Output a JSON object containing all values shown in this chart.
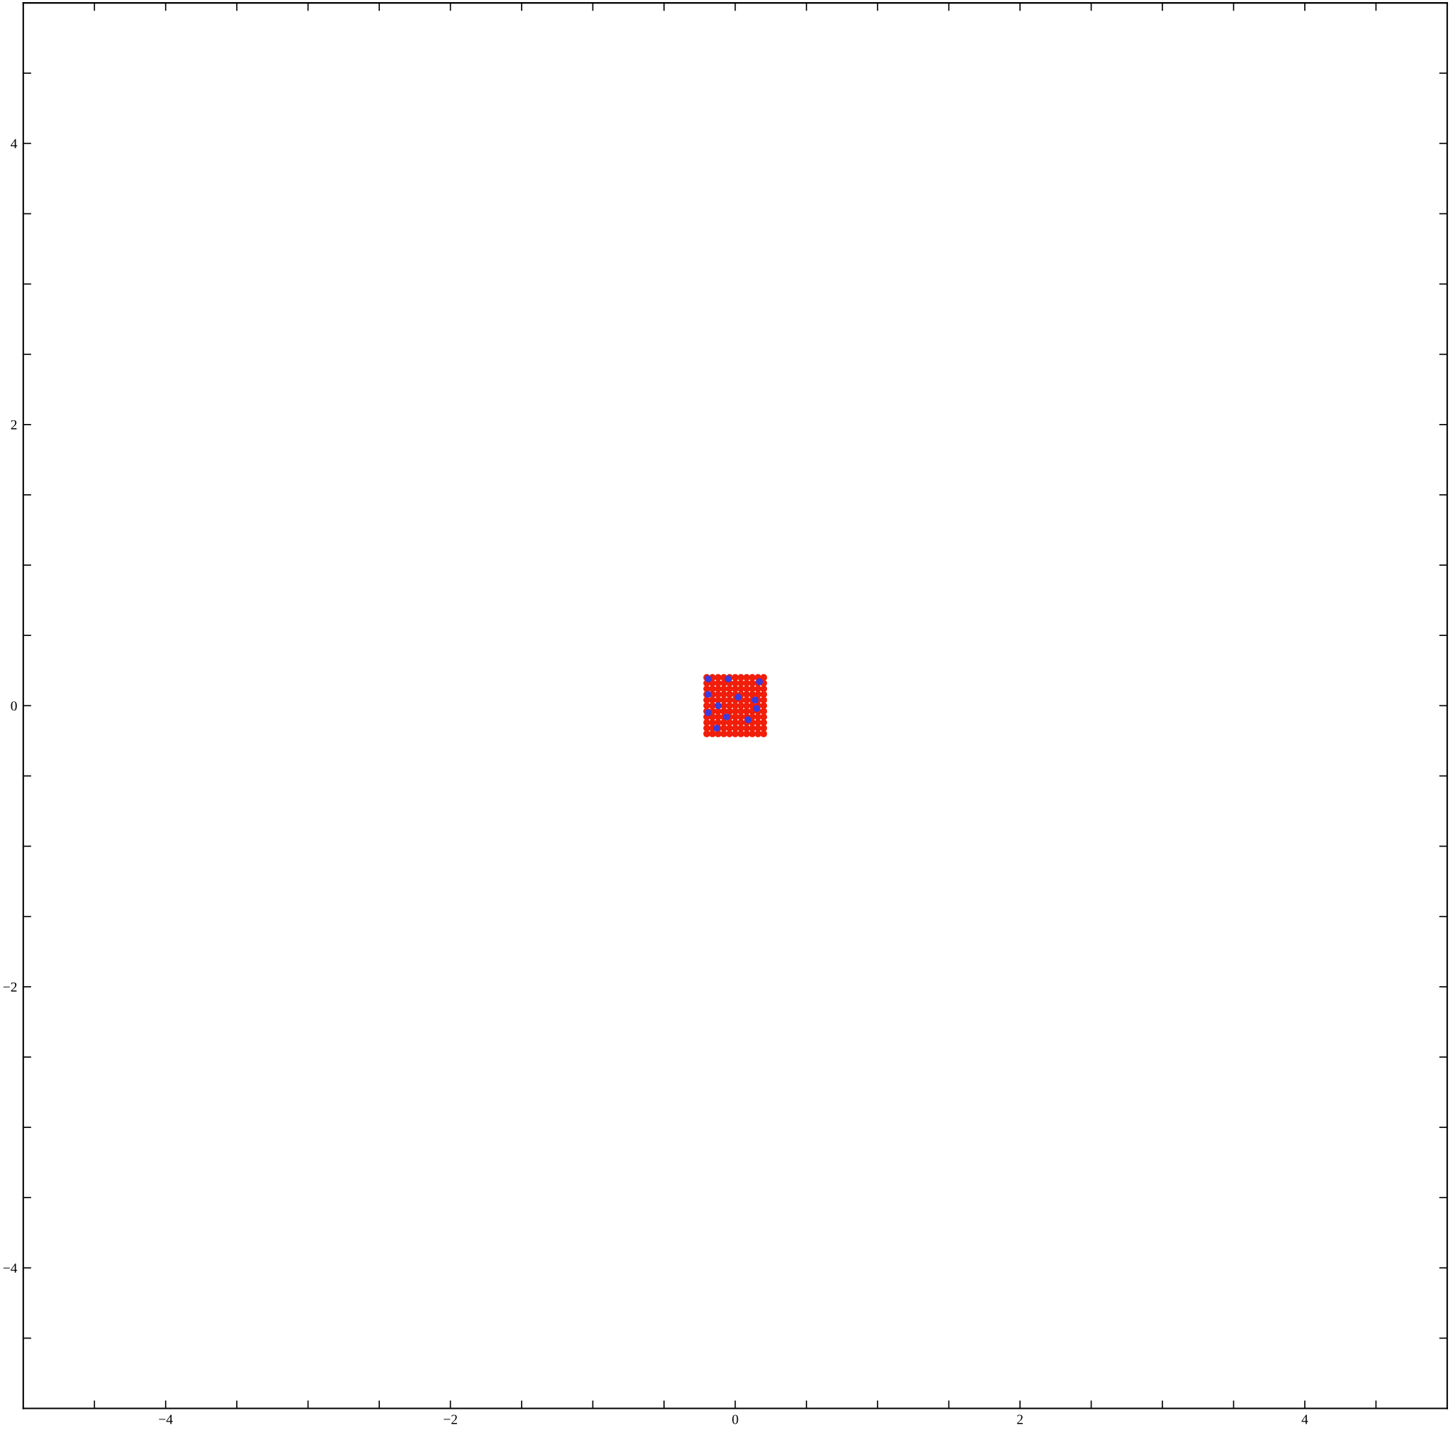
{
  "chart_data": {
    "type": "scatter",
    "marker": "circle",
    "grid": false,
    "legend": false,
    "xlim": [
      -5,
      5
    ],
    "ylim": [
      -5,
      5
    ],
    "xticks": [
      {
        "value": -4.5,
        "label": null
      },
      {
        "value": -4,
        "label": "−4"
      },
      {
        "value": -3.5,
        "label": null
      },
      {
        "value": -3,
        "label": null
      },
      {
        "value": -2.5,
        "label": null
      },
      {
        "value": -2,
        "label": "−2"
      },
      {
        "value": -1.5,
        "label": null
      },
      {
        "value": -1,
        "label": null
      },
      {
        "value": -0.5,
        "label": null
      },
      {
        "value": 0,
        "label": "0"
      },
      {
        "value": 0.5,
        "label": null
      },
      {
        "value": 1,
        "label": null
      },
      {
        "value": 1.5,
        "label": null
      },
      {
        "value": 2,
        "label": "2"
      },
      {
        "value": 2.5,
        "label": null
      },
      {
        "value": 3,
        "label": null
      },
      {
        "value": 3.5,
        "label": null
      },
      {
        "value": 4,
        "label": "4"
      },
      {
        "value": 4.5,
        "label": null
      }
    ],
    "yticks": [
      {
        "value": -4.5,
        "label": null
      },
      {
        "value": -4,
        "label": "−4"
      },
      {
        "value": -3.5,
        "label": null
      },
      {
        "value": -3,
        "label": null
      },
      {
        "value": -2.5,
        "label": null
      },
      {
        "value": -2,
        "label": "−2"
      },
      {
        "value": -1.5,
        "label": null
      },
      {
        "value": -1,
        "label": null
      },
      {
        "value": -0.5,
        "label": null
      },
      {
        "value": 0,
        "label": "0"
      },
      {
        "value": 0.5,
        "label": null
      },
      {
        "value": 1,
        "label": null
      },
      {
        "value": 1.5,
        "label": null
      },
      {
        "value": 2,
        "label": "2"
      },
      {
        "value": 2.5,
        "label": null
      },
      {
        "value": 3,
        "label": null
      },
      {
        "value": 3.5,
        "label": null
      },
      {
        "value": 4,
        "label": "4"
      },
      {
        "value": 4.5,
        "label": null
      }
    ],
    "series": [
      {
        "color": "#f01e0a",
        "x": [
          -0.2,
          -0.16,
          -0.12,
          -0.08,
          -0.04,
          0,
          0.04,
          0.08,
          0.12,
          0.16,
          0.2,
          -0.2,
          -0.16,
          -0.12,
          -0.08,
          -0.04,
          0,
          0.04,
          0.08,
          0.12,
          0.16,
          0.2,
          -0.2,
          -0.16,
          -0.12,
          -0.08,
          -0.04,
          0,
          0.04,
          0.08,
          0.12,
          0.16,
          0.2,
          -0.2,
          -0.16,
          -0.12,
          -0.08,
          -0.04,
          0,
          0.04,
          0.08,
          0.12,
          0.16,
          0.2,
          -0.2,
          -0.16,
          -0.12,
          -0.08,
          -0.04,
          0,
          0.04,
          0.08,
          0.12,
          0.16,
          0.2,
          -0.2,
          -0.16,
          -0.12,
          -0.08,
          -0.04,
          0,
          0.04,
          0.08,
          0.12,
          0.16,
          0.2,
          -0.2,
          -0.16,
          -0.12,
          -0.08,
          -0.04,
          0,
          0.04,
          0.08,
          0.12,
          0.16,
          0.2,
          -0.2,
          -0.16,
          -0.12,
          -0.08,
          -0.04,
          0,
          0.04,
          0.08,
          0.12,
          0.16,
          0.2,
          -0.2,
          -0.16,
          -0.12,
          -0.08,
          -0.04,
          0,
          0.04,
          0.08,
          0.12,
          0.16,
          0.2,
          -0.2,
          -0.16,
          -0.12,
          -0.08,
          -0.04,
          0,
          0.04,
          0.08,
          0.12,
          0.16,
          0.2,
          -0.2,
          -0.16,
          -0.12,
          -0.08,
          -0.04,
          0,
          0.04,
          0.08,
          0.12,
          0.16,
          0.2
        ],
        "values": [
          0.2,
          0.2,
          0.2,
          0.2,
          0.2,
          0.2,
          0.2,
          0.2,
          0.2,
          0.2,
          0.2,
          0.16,
          0.16,
          0.16,
          0.16,
          0.16,
          0.16,
          0.16,
          0.16,
          0.16,
          0.16,
          0.16,
          0.12,
          0.12,
          0.12,
          0.12,
          0.12,
          0.12,
          0.12,
          0.12,
          0.12,
          0.12,
          0.12,
          0.08,
          0.08,
          0.08,
          0.08,
          0.08,
          0.08,
          0.08,
          0.08,
          0.08,
          0.08,
          0.08,
          0.04,
          0.04,
          0.04,
          0.04,
          0.04,
          0.04,
          0.04,
          0.04,
          0.04,
          0.04,
          0.04,
          0,
          0,
          0,
          0,
          0,
          0,
          0,
          0,
          0,
          0,
          0,
          -0.04,
          -0.04,
          -0.04,
          -0.04,
          -0.04,
          -0.04,
          -0.04,
          -0.04,
          -0.04,
          -0.04,
          -0.04,
          -0.08,
          -0.08,
          -0.08,
          -0.08,
          -0.08,
          -0.08,
          -0.08,
          -0.08,
          -0.08,
          -0.08,
          -0.08,
          -0.12,
          -0.12,
          -0.12,
          -0.12,
          -0.12,
          -0.12,
          -0.12,
          -0.12,
          -0.12,
          -0.12,
          -0.12,
          -0.16,
          -0.16,
          -0.16,
          -0.16,
          -0.16,
          -0.16,
          -0.16,
          -0.16,
          -0.16,
          -0.16,
          -0.16,
          -0.2,
          -0.2,
          -0.2,
          -0.2,
          -0.2,
          -0.2,
          -0.2,
          -0.2,
          -0.2,
          -0.2,
          -0.2
        ]
      },
      {
        "color": "#3c3cdc",
        "x": [
          -0.19,
          -0.05,
          0.17,
          -0.19,
          0.02,
          0.14,
          -0.12,
          0.15,
          -0.19,
          -0.06,
          0.09,
          -0.13
        ],
        "values": [
          0.19,
          0.19,
          0.17,
          0.08,
          0.06,
          0.04,
          0.0,
          -0.02,
          -0.05,
          -0.08,
          -0.1,
          -0.16
        ]
      }
    ]
  }
}
